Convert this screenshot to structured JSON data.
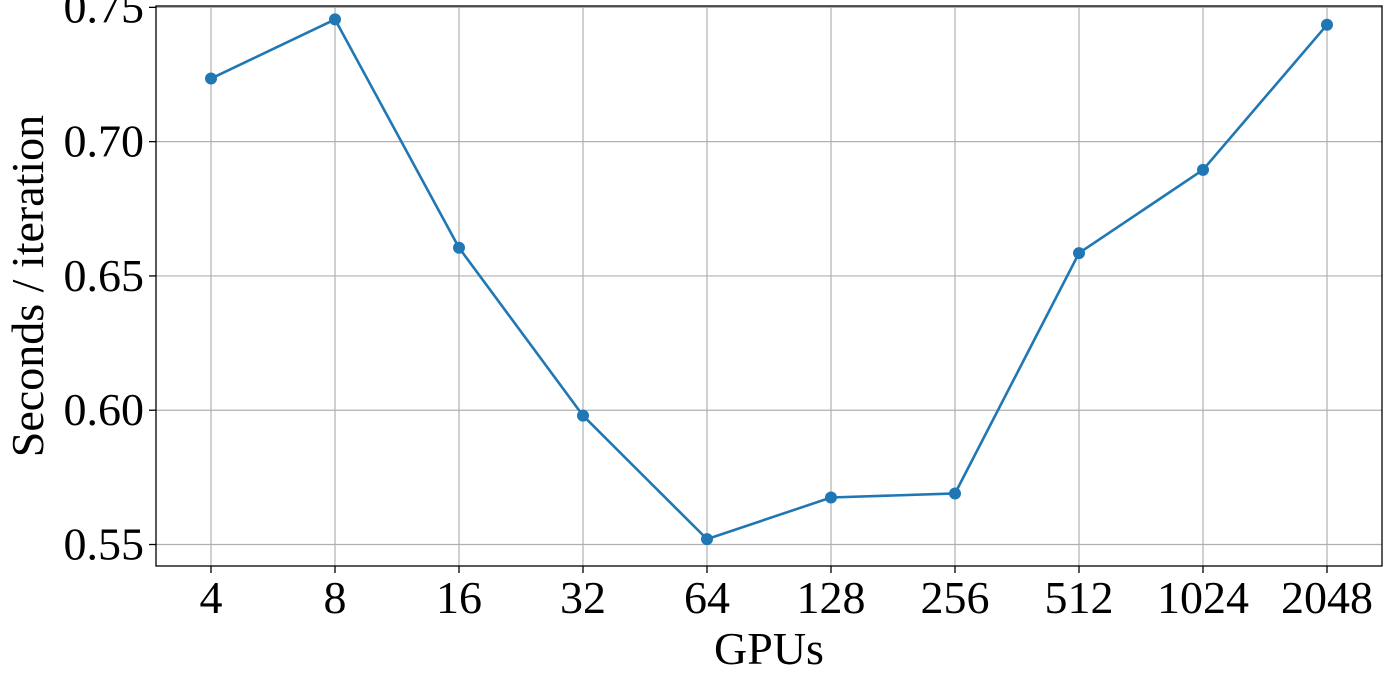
{
  "chart_data": {
    "type": "line",
    "title": "",
    "xlabel": "GPUs",
    "ylabel": "Seconds / iteration",
    "categories": [
      "4",
      "8",
      "16",
      "32",
      "64",
      "128",
      "256",
      "512",
      "1024",
      "2048"
    ],
    "series": [
      {
        "values": [
          0.7235,
          0.7455,
          0.6605,
          0.598,
          0.552,
          0.5675,
          0.569,
          0.6585,
          0.6895,
          0.7435
        ],
        "color": "#1f77b4",
        "marker": "circle"
      }
    ],
    "yticks": [
      0.55,
      0.6,
      0.65,
      0.7,
      0.75
    ],
    "ytick_labels": [
      "0.55",
      "0.60",
      "0.65",
      "0.70",
      "0.75"
    ],
    "ylim": [
      0.542,
      0.7505
    ],
    "grid": true,
    "legend": "none"
  }
}
